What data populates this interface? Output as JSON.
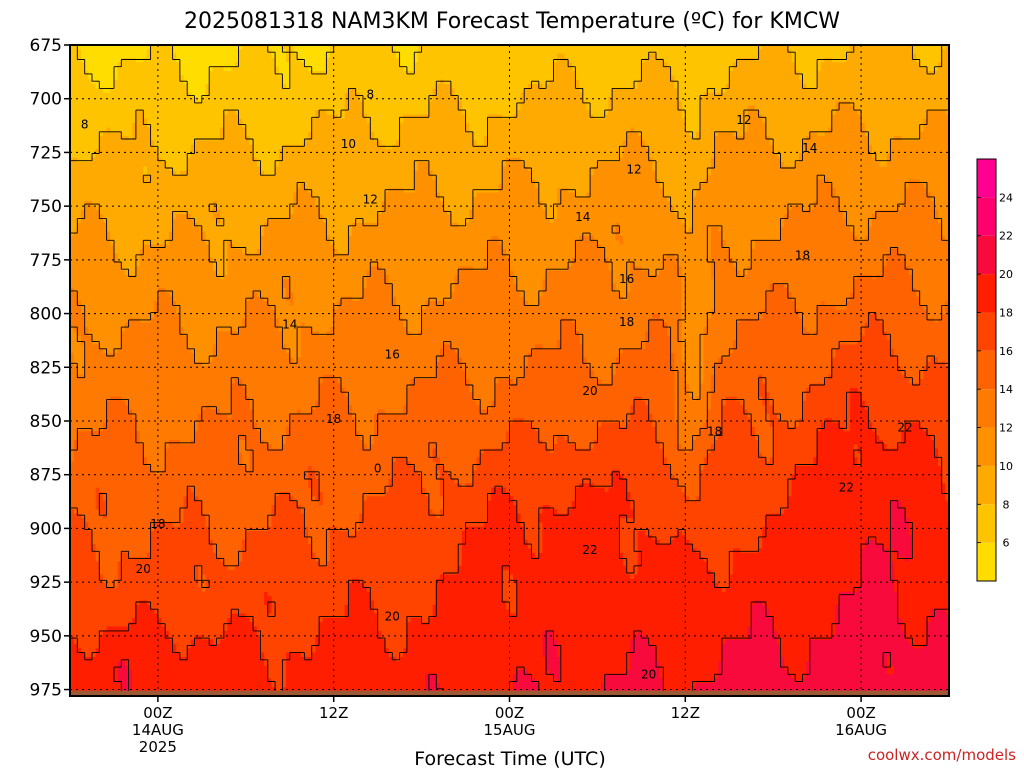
{
  "chart_data": {
    "type": "heatmap",
    "title": "2025081318 NAM3KM Forecast Temperature (ºC) for KMCW",
    "xlabel": "Forecast Time (UTC)",
    "ylabel": "",
    "credit": "coolwx.com/models",
    "x_ticks": [
      {
        "lines": [
          "00Z",
          "14AUG",
          "2025"
        ],
        "hour": 6
      },
      {
        "lines": [
          "12Z"
        ],
        "hour": 18
      },
      {
        "lines": [
          "00Z",
          "15AUG"
        ],
        "hour": 30
      },
      {
        "lines": [
          "12Z"
        ],
        "hour": 42
      },
      {
        "lines": [
          "00Z",
          "16AUG"
        ],
        "hour": 54
      }
    ],
    "xlim_hours_from_init": [
      0,
      60
    ],
    "y_ticks": [
      675,
      700,
      725,
      750,
      775,
      800,
      825,
      850,
      875,
      900,
      925,
      950,
      975
    ],
    "ylim_hPa": [
      675,
      978
    ],
    "grid": true,
    "colorbar_ticks": [
      6,
      8,
      10,
      12,
      14,
      16,
      18,
      20,
      22,
      24
    ],
    "colorbar_range": [
      4,
      26
    ],
    "color_levels": [
      {
        "min": 4,
        "max": 6,
        "color": "#FFDD00"
      },
      {
        "min": 6,
        "max": 8,
        "color": "#FFC400"
      },
      {
        "min": 8,
        "max": 10,
        "color": "#FFAA00"
      },
      {
        "min": 10,
        "max": 12,
        "color": "#FF9000"
      },
      {
        "min": 12,
        "max": 14,
        "color": "#FF7A00"
      },
      {
        "min": 14,
        "max": 16,
        "color": "#FF6200"
      },
      {
        "min": 16,
        "max": 18,
        "color": "#FF4400"
      },
      {
        "min": 18,
        "max": 20,
        "color": "#FF1E00"
      },
      {
        "min": 20,
        "max": 22,
        "color": "#F80A3C"
      },
      {
        "min": 22,
        "max": 24,
        "color": "#FF006E"
      },
      {
        "min": 24,
        "max": 26,
        "color": "#FF0090"
      }
    ],
    "ground_color": "#9B5A35",
    "contour_labels": [
      {
        "text": "8",
        "hour": 1.0,
        "p": 712
      },
      {
        "text": "8",
        "hour": 20.5,
        "p": 698
      },
      {
        "text": "10",
        "hour": 19.0,
        "p": 721
      },
      {
        "text": "12",
        "hour": 20.5,
        "p": 747
      },
      {
        "text": "12",
        "hour": 38.5,
        "p": 733
      },
      {
        "text": "12",
        "hour": 46.0,
        "p": 710
      },
      {
        "text": "14",
        "hour": 35.0,
        "p": 755
      },
      {
        "text": "14",
        "hour": 50.5,
        "p": 723
      },
      {
        "text": "14",
        "hour": 15.0,
        "p": 805
      },
      {
        "text": "16",
        "hour": 38.0,
        "p": 784
      },
      {
        "text": "16",
        "hour": 22.0,
        "p": 819
      },
      {
        "text": "18",
        "hour": 38.0,
        "p": 804
      },
      {
        "text": "18",
        "hour": 18.0,
        "p": 849
      },
      {
        "text": "18",
        "hour": 6.0,
        "p": 898
      },
      {
        "text": "18",
        "hour": 44.0,
        "p": 855
      },
      {
        "text": "18",
        "hour": 50.0,
        "p": 773
      },
      {
        "text": "20",
        "hour": 35.5,
        "p": 836
      },
      {
        "text": "20",
        "hour": 5.0,
        "p": 919
      },
      {
        "text": "20",
        "hour": 22.0,
        "p": 941
      },
      {
        "text": "20",
        "hour": 39.5,
        "p": 968
      },
      {
        "text": "22",
        "hour": 35.5,
        "p": 910
      },
      {
        "text": "22",
        "hour": 53.0,
        "p": 881
      },
      {
        "text": "22",
        "hour": 57.0,
        "p": 853
      },
      {
        "text": "0",
        "hour": 21.0,
        "p": 872
      }
    ]
  }
}
